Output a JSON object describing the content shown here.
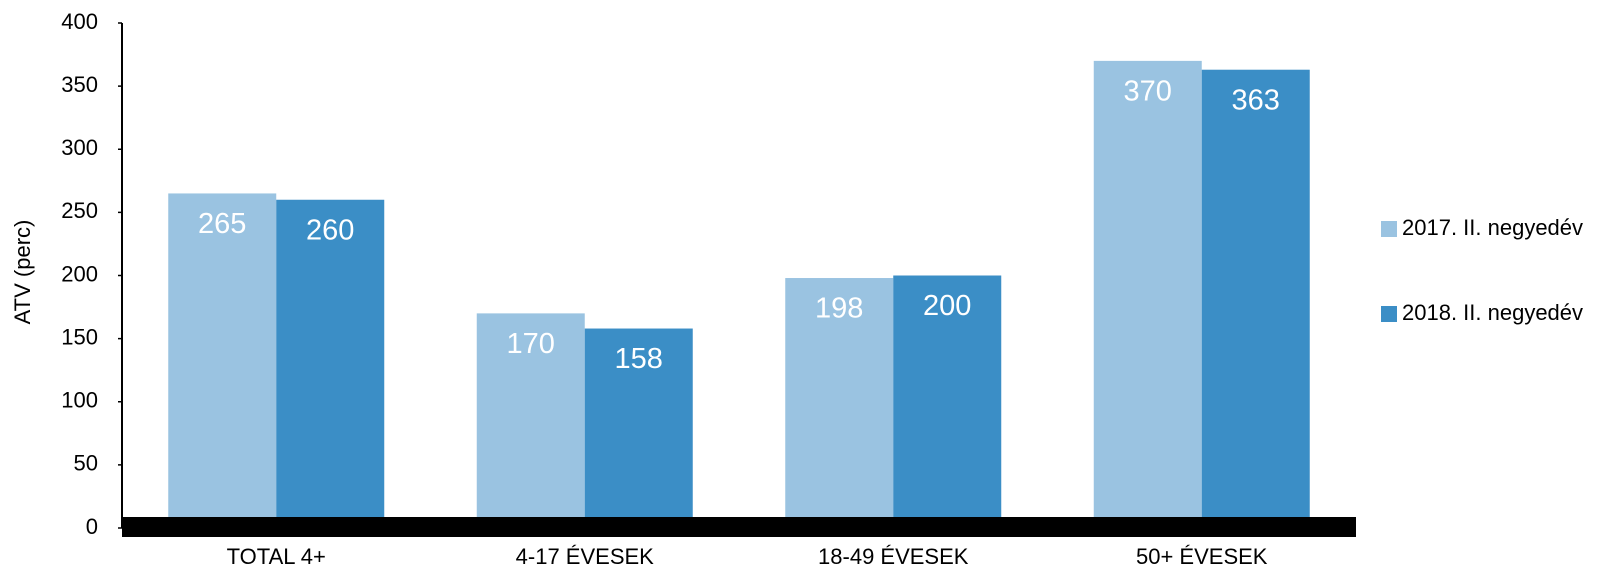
{
  "chart_data": {
    "type": "bar",
    "y_label": "ATV (perc)",
    "categories": [
      "TOTAL 4+",
      "4-17 ÉVESEK",
      "18-49 ÉVESEK",
      "50+ ÉVESEK"
    ],
    "series": [
      {
        "name": "2017. II. negyedév",
        "color": "#9ac3e1",
        "values": [
          265,
          170,
          198,
          370
        ]
      },
      {
        "name": "2018. II. negyedév",
        "color": "#3b8ec6",
        "values": [
          260,
          158,
          200,
          363
        ]
      }
    ],
    "ylim": [
      0,
      400
    ],
    "yticks": [
      0,
      50,
      100,
      150,
      200,
      250,
      300,
      350,
      400
    ]
  }
}
